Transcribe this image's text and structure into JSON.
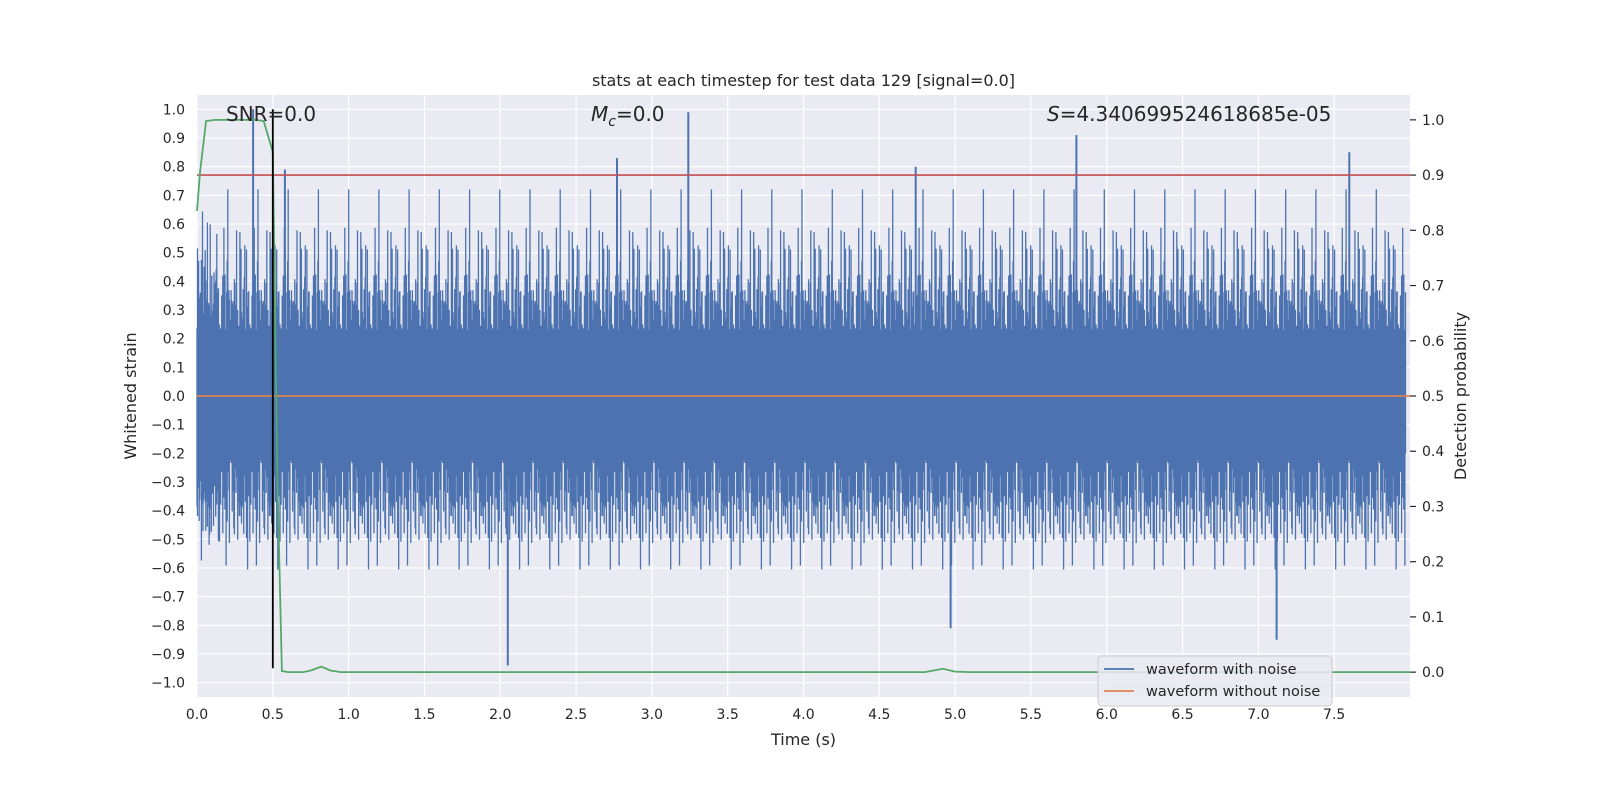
{
  "chart_data": {
    "type": "line",
    "title": "stats at each timestep for test data 129 [signal=0.0]",
    "xlabel": "Time (s)",
    "ylabel": "Whitened strain",
    "y2label": "Detection probability",
    "xlim": [
      0.0,
      8.0
    ],
    "ylim": [
      -1.05,
      1.05
    ],
    "y2lim": [
      -0.045,
      1.045
    ],
    "x_ticks": [
      "0.0",
      "0.5",
      "1.0",
      "1.5",
      "2.0",
      "2.5",
      "3.0",
      "3.5",
      "4.0",
      "4.5",
      "5.0",
      "5.5",
      "6.0",
      "6.5",
      "7.0",
      "7.5"
    ],
    "y_ticks": [
      "1.0",
      "0.9",
      "0.8",
      "0.7",
      "0.6",
      "0.5",
      "0.4",
      "0.3",
      "0.2",
      "0.1",
      "0.0",
      "−0.1",
      "−0.2",
      "−0.3",
      "−0.4",
      "−0.5",
      "−0.6",
      "−0.7",
      "−0.8",
      "−0.9",
      "−1.0"
    ],
    "y2_ticks": [
      "1.0",
      "0.9",
      "0.8",
      "0.7",
      "0.6",
      "0.5",
      "0.4",
      "0.3",
      "0.2",
      "0.1",
      "0.0"
    ],
    "grid": true,
    "legend_position": "lower-right",
    "annotations": {
      "snr": "SNR=0.0",
      "mc_symbol": "M",
      "mc_sub": "c",
      "mc_value": "=0.0",
      "s_symbol": "S",
      "s_value": "=4.340699524618685e-05"
    },
    "series": [
      {
        "name": "waveform with noise",
        "color": "#4c72b0",
        "description_axis": "left",
        "notable_peaks": [
          {
            "x": 0.37,
            "y": 1.0
          },
          {
            "x": 0.58,
            "y": 0.79
          },
          {
            "x": 2.77,
            "y": 0.83
          },
          {
            "x": 3.24,
            "y": 0.99
          },
          {
            "x": 4.74,
            "y": 0.8
          },
          {
            "x": 5.8,
            "y": 0.91
          },
          {
            "x": 7.6,
            "y": 0.85
          },
          {
            "x": 2.05,
            "y": -0.94
          },
          {
            "x": 4.97,
            "y": -0.81
          },
          {
            "x": 7.12,
            "y": -0.85
          }
        ]
      },
      {
        "name": "waveform without noise",
        "color": "#dd8452",
        "description_axis": "left",
        "x": [
          0.0,
          8.0
        ],
        "y": [
          0.0,
          0.0
        ]
      },
      {
        "name": "",
        "color": "#55a868",
        "description_axis": "right",
        "x": [
          0.0,
          0.02,
          0.06,
          0.12,
          0.2,
          0.3,
          0.38,
          0.44,
          0.5,
          0.53,
          0.56,
          0.6,
          0.7,
          0.75,
          0.82,
          0.88,
          0.95,
          1.0,
          2.0,
          3.0,
          4.0,
          4.8,
          4.92,
          5.0,
          5.1,
          6.0,
          7.0,
          8.0
        ],
        "y": [
          0.835,
          0.905,
          0.998,
          1.0,
          1.0,
          1.0,
          1.0,
          0.998,
          0.942,
          0.35,
          0.002,
          0.0,
          0.0,
          0.003,
          0.01,
          0.003,
          0.0,
          0.0,
          0.0,
          0.0,
          0.0,
          0.0,
          0.006,
          0.001,
          0.0,
          0.0,
          0.0,
          0.0
        ]
      },
      {
        "name": "",
        "color": "#c44e52",
        "description_axis": "right",
        "x": [
          0.0,
          8.0
        ],
        "y": [
          0.9,
          0.9
        ]
      },
      {
        "name": "",
        "color": "#000000",
        "description_axis": "left",
        "x": [
          0.5,
          0.5
        ],
        "y": [
          -0.95,
          1.0
        ]
      }
    ]
  }
}
